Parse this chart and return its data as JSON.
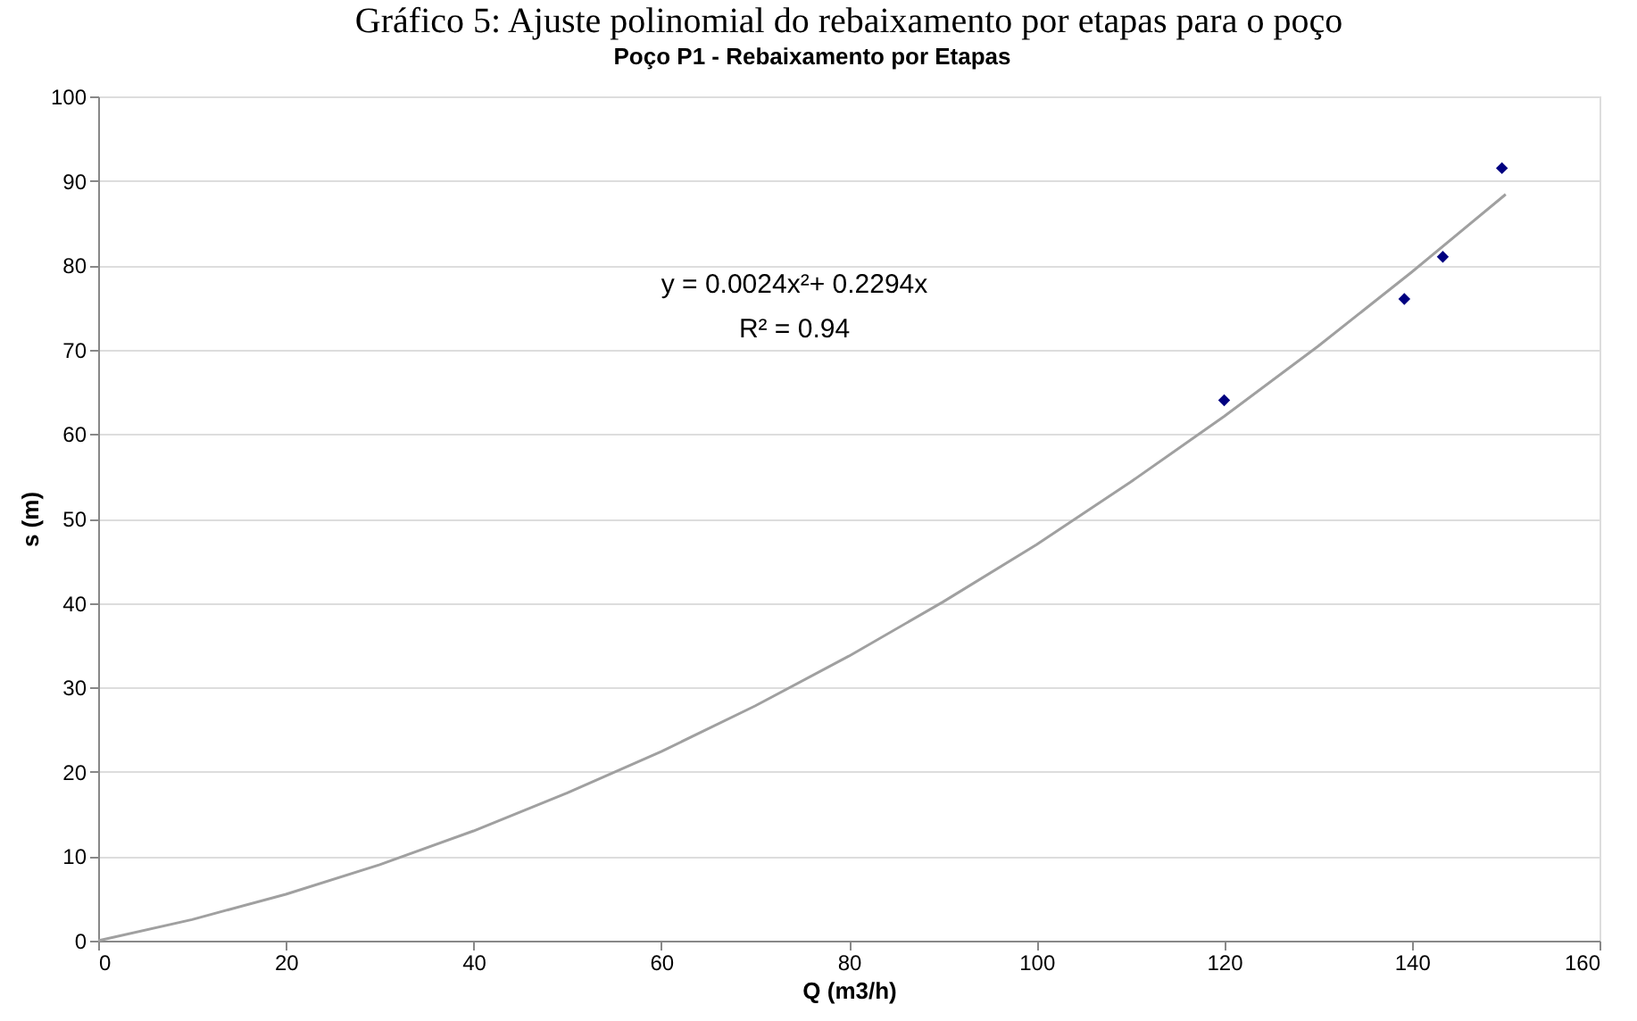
{
  "chart_data": {
    "type": "scatter",
    "title": "Poço P1 - Rebaixamento por Etapas",
    "xlabel": "Q (m3/h)",
    "ylabel": "s (m)",
    "annotations": [
      "Gráfico 5: Ajuste polinomial do rebaixamento por etapas para o poço",
      "y = 0.0024x²+ 0.2294x",
      "R² = 0.94"
    ],
    "series": [
      {
        "color": "#000080",
        "marker": "diamond",
        "x": [
          120,
          139.2,
          143.3,
          149.6
        ],
        "values": [
          64,
          76,
          81,
          91.5
        ]
      },
      {
        "type": "line",
        "color": "#a0a0a0",
        "marker": "none",
        "line_style": "solid",
        "x": [
          0,
          10,
          20,
          30,
          40,
          50,
          60,
          70,
          80,
          90,
          100,
          110,
          120,
          130,
          140,
          150
        ],
        "values": [
          0,
          2.5,
          5.5,
          9.0,
          13.0,
          17.5,
          22.4,
          27.8,
          33.7,
          40.1,
          46.9,
          54.3,
          62.1,
          70.4,
          79.2,
          88.4
        ]
      }
    ],
    "xlim": [
      0,
      160
    ],
    "xticks": [
      0,
      20,
      40,
      60,
      80,
      100,
      120,
      140,
      160
    ],
    "ylim": [
      0,
      100
    ],
    "yticks": [
      0,
      10,
      20,
      30,
      40,
      50,
      60,
      70,
      80,
      90,
      100
    ],
    "grid": "y"
  }
}
